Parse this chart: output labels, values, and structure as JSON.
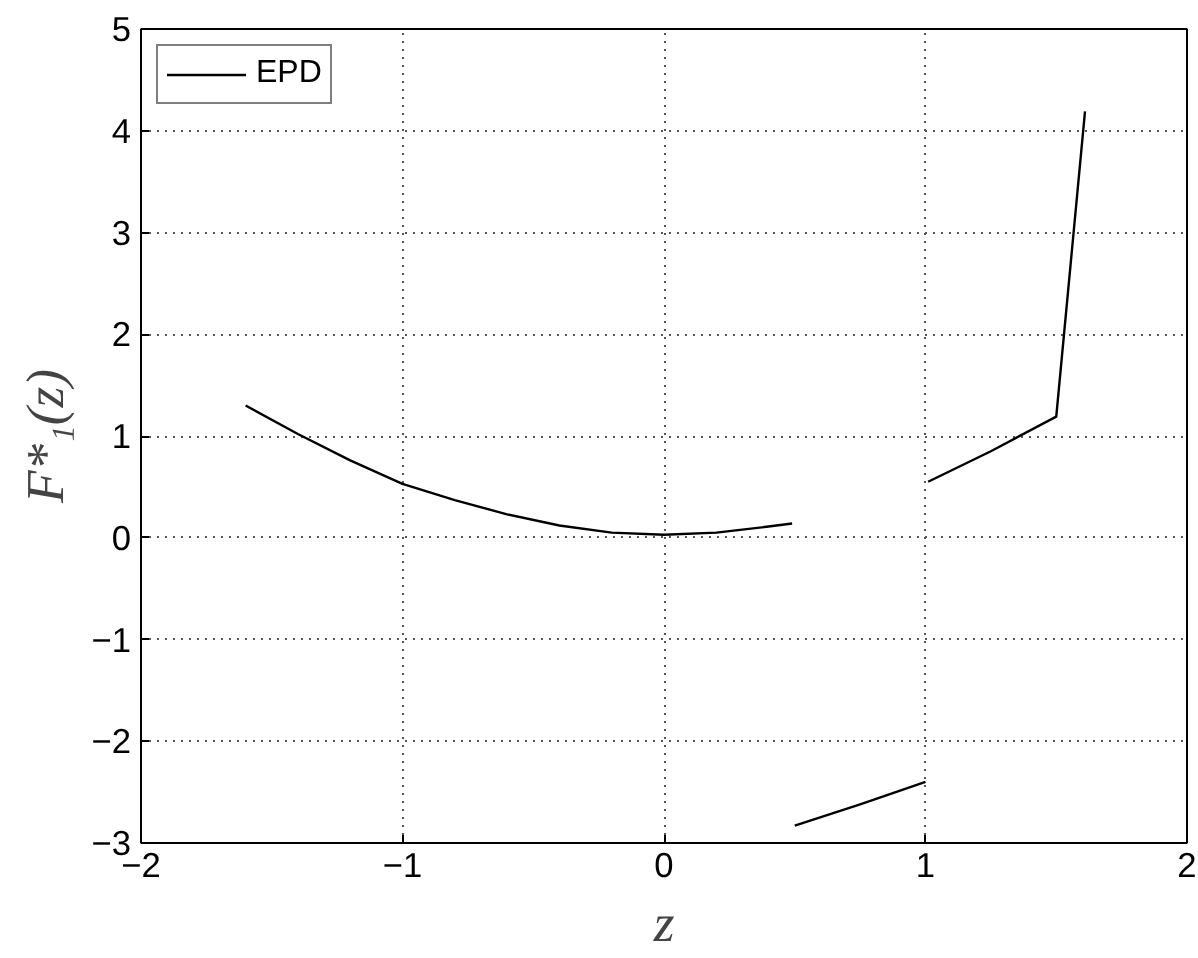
{
  "chart_data": {
    "type": "line",
    "xlabel": "z",
    "ylabel": "F*₁(z)",
    "x": [
      -1.6,
      -1.4,
      -1.2,
      -1.0,
      -0.8,
      -0.6,
      -0.4,
      -0.2,
      0.0,
      0.2,
      0.4,
      0.49,
      0.495,
      0.5,
      0.75,
      1.0,
      1.005,
      1.01,
      1.25,
      1.5,
      1.61
    ],
    "series": [
      {
        "name": "EPD",
        "color": "#000000",
        "values": [
          1.3,
          1.02,
          0.76,
          0.53,
          0.37,
          0.23,
          0.12,
          0.05,
          0.03,
          0.05,
          0.11,
          0.14,
          null,
          -2.83,
          -2.62,
          -2.4,
          null,
          0.55,
          0.85,
          1.19,
          4.19
        ]
      }
    ],
    "xlim": [
      -2,
      2
    ],
    "ylim": [
      -3,
      5
    ],
    "xticks": [
      {
        "value": -2,
        "label": "−2"
      },
      {
        "value": -1,
        "label": "−1"
      },
      0,
      1,
      2
    ],
    "yticks": [
      {
        "value": -3,
        "label": "−3"
      },
      {
        "value": -2,
        "label": "−2"
      },
      {
        "value": -1,
        "label": "−1"
      },
      0,
      1,
      2,
      3,
      4,
      5
    ],
    "grid": true,
    "legend": "top left",
    "line_style": "solid",
    "marker": "none"
  }
}
